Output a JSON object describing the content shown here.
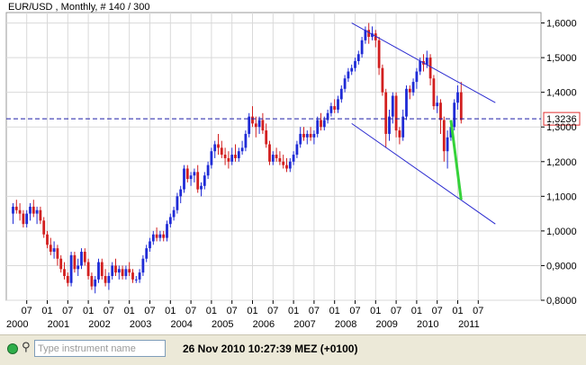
{
  "chart_data": {
    "type": "candlestick",
    "title": "EUR/USD , Monthly, # 140 / 300",
    "current_price_label": "1,3236",
    "current_price": 1.3236,
    "ylim": [
      0.8,
      1.63
    ],
    "y_ticks": [
      "0,8000",
      "0,9000",
      "1,0000",
      "1,1000",
      "1,2000",
      "1,3000",
      "1,4000",
      "1,5000",
      "1,6000"
    ],
    "y_tick_values": [
      0.8,
      0.9,
      1.0,
      1.1,
      1.2,
      1.3,
      1.4,
      1.5,
      1.6
    ],
    "month_ticks": [
      "07",
      "01",
      "07",
      "01",
      "07",
      "01",
      "07",
      "01",
      "07",
      "01",
      "07",
      "01",
      "07",
      "01",
      "07",
      "01",
      "07",
      "01",
      "07",
      "01",
      "07",
      "01",
      "07"
    ],
    "year_labels": [
      "2000",
      "2001",
      "2002",
      "2003",
      "2004",
      "2005",
      "2006",
      "2007",
      "2008",
      "2009",
      "2010",
      "2011"
    ],
    "start_date": "2000-03",
    "colors": {
      "up": "#1f2bd6",
      "down": "#d21f1f",
      "grid": "#d9d9d9",
      "projection": "#35d23a",
      "channel": "#2a2ad0",
      "level": "#1c1ca8",
      "price_box": "#e23030"
    },
    "candles": [
      [
        1.05,
        1.08,
        1.02,
        1.07
      ],
      [
        1.07,
        1.09,
        1.05,
        1.06
      ],
      [
        1.06,
        1.08,
        1.03,
        1.05
      ],
      [
        1.05,
        1.06,
        1.01,
        1.02
      ],
      [
        1.02,
        1.06,
        1.01,
        1.05
      ],
      [
        1.05,
        1.08,
        1.03,
        1.07
      ],
      [
        1.07,
        1.09,
        1.04,
        1.05
      ],
      [
        1.05,
        1.07,
        1.02,
        1.06
      ],
      [
        1.06,
        1.07,
        1.02,
        1.03
      ],
      [
        1.03,
        1.04,
        0.98,
        0.99
      ],
      [
        0.99,
        1.0,
        0.95,
        0.96
      ],
      [
        0.96,
        0.98,
        0.93,
        0.94
      ],
      [
        0.94,
        0.97,
        0.92,
        0.95
      ],
      [
        0.95,
        0.96,
        0.9,
        0.92
      ],
      [
        0.92,
        0.93,
        0.88,
        0.89
      ],
      [
        0.89,
        0.91,
        0.86,
        0.87
      ],
      [
        0.87,
        0.88,
        0.84,
        0.85
      ],
      [
        0.85,
        0.94,
        0.84,
        0.93
      ],
      [
        0.93,
        0.94,
        0.88,
        0.89
      ],
      [
        0.89,
        0.92,
        0.87,
        0.9
      ],
      [
        0.9,
        0.95,
        0.89,
        0.94
      ],
      [
        0.94,
        0.95,
        0.9,
        0.91
      ],
      [
        0.91,
        0.92,
        0.86,
        0.87
      ],
      [
        0.87,
        0.88,
        0.83,
        0.84
      ],
      [
        0.84,
        0.87,
        0.82,
        0.86
      ],
      [
        0.86,
        0.92,
        0.85,
        0.91
      ],
      [
        0.91,
        0.92,
        0.86,
        0.87
      ],
      [
        0.87,
        0.89,
        0.84,
        0.85
      ],
      [
        0.85,
        0.88,
        0.83,
        0.87
      ],
      [
        0.87,
        0.91,
        0.86,
        0.9
      ],
      [
        0.9,
        0.92,
        0.87,
        0.88
      ],
      [
        0.88,
        0.9,
        0.86,
        0.89
      ],
      [
        0.89,
        0.9,
        0.86,
        0.87
      ],
      [
        0.87,
        0.9,
        0.86,
        0.89
      ],
      [
        0.89,
        0.91,
        0.87,
        0.88
      ],
      [
        0.88,
        0.89,
        0.85,
        0.86
      ],
      [
        0.86,
        0.87,
        0.85,
        0.86
      ],
      [
        0.86,
        0.89,
        0.85,
        0.88
      ],
      [
        0.88,
        0.93,
        0.87,
        0.92
      ],
      [
        0.92,
        0.96,
        0.91,
        0.95
      ],
      [
        0.95,
        0.98,
        0.94,
        0.97
      ],
      [
        0.97,
        1.0,
        0.96,
        0.99
      ],
      [
        0.99,
        1.01,
        0.97,
        0.98
      ],
      [
        0.98,
        1.0,
        0.97,
        0.99
      ],
      [
        0.99,
        1.0,
        0.97,
        0.98
      ],
      [
        0.98,
        1.03,
        0.97,
        1.02
      ],
      [
        1.02,
        1.05,
        1.01,
        1.04
      ],
      [
        1.04,
        1.07,
        1.03,
        1.06
      ],
      [
        1.06,
        1.11,
        1.05,
        1.1
      ],
      [
        1.1,
        1.13,
        1.08,
        1.12
      ],
      [
        1.12,
        1.19,
        1.11,
        1.18
      ],
      [
        1.18,
        1.19,
        1.14,
        1.15
      ],
      [
        1.15,
        1.17,
        1.13,
        1.16
      ],
      [
        1.16,
        1.18,
        1.14,
        1.17
      ],
      [
        1.17,
        1.19,
        1.11,
        1.12
      ],
      [
        1.12,
        1.14,
        1.1,
        1.13
      ],
      [
        1.13,
        1.17,
        1.12,
        1.16
      ],
      [
        1.16,
        1.2,
        1.15,
        1.19
      ],
      [
        1.19,
        1.24,
        1.18,
        1.23
      ],
      [
        1.23,
        1.26,
        1.21,
        1.25
      ],
      [
        1.25,
        1.28,
        1.22,
        1.24
      ],
      [
        1.24,
        1.26,
        1.21,
        1.22
      ],
      [
        1.22,
        1.24,
        1.19,
        1.21
      ],
      [
        1.21,
        1.23,
        1.18,
        1.2
      ],
      [
        1.2,
        1.24,
        1.19,
        1.22
      ],
      [
        1.22,
        1.25,
        1.2,
        1.21
      ],
      [
        1.21,
        1.24,
        1.2,
        1.23
      ],
      [
        1.23,
        1.26,
        1.22,
        1.24
      ],
      [
        1.24,
        1.29,
        1.23,
        1.28
      ],
      [
        1.28,
        1.34,
        1.27,
        1.33
      ],
      [
        1.33,
        1.36,
        1.3,
        1.31
      ],
      [
        1.31,
        1.33,
        1.27,
        1.3
      ],
      [
        1.3,
        1.33,
        1.28,
        1.32
      ],
      [
        1.32,
        1.34,
        1.28,
        1.29
      ],
      [
        1.29,
        1.31,
        1.24,
        1.25
      ],
      [
        1.25,
        1.26,
        1.19,
        1.2
      ],
      [
        1.2,
        1.23,
        1.19,
        1.22
      ],
      [
        1.22,
        1.24,
        1.2,
        1.21
      ],
      [
        1.21,
        1.23,
        1.19,
        1.2
      ],
      [
        1.2,
        1.22,
        1.18,
        1.19
      ],
      [
        1.19,
        1.21,
        1.17,
        1.18
      ],
      [
        1.18,
        1.21,
        1.17,
        1.2
      ],
      [
        1.2,
        1.23,
        1.19,
        1.22
      ],
      [
        1.22,
        1.26,
        1.21,
        1.25
      ],
      [
        1.25,
        1.3,
        1.24,
        1.28
      ],
      [
        1.28,
        1.3,
        1.26,
        1.27
      ],
      [
        1.27,
        1.29,
        1.25,
        1.28
      ],
      [
        1.28,
        1.3,
        1.26,
        1.27
      ],
      [
        1.27,
        1.29,
        1.25,
        1.28
      ],
      [
        1.28,
        1.33,
        1.27,
        1.32
      ],
      [
        1.32,
        1.34,
        1.29,
        1.3
      ],
      [
        1.3,
        1.33,
        1.29,
        1.32
      ],
      [
        1.32,
        1.35,
        1.31,
        1.34
      ],
      [
        1.34,
        1.37,
        1.33,
        1.36
      ],
      [
        1.36,
        1.38,
        1.34,
        1.35
      ],
      [
        1.35,
        1.39,
        1.34,
        1.38
      ],
      [
        1.38,
        1.42,
        1.37,
        1.41
      ],
      [
        1.41,
        1.45,
        1.4,
        1.44
      ],
      [
        1.44,
        1.47,
        1.43,
        1.46
      ],
      [
        1.46,
        1.48,
        1.45,
        1.47
      ],
      [
        1.47,
        1.5,
        1.46,
        1.49
      ],
      [
        1.49,
        1.52,
        1.48,
        1.51
      ],
      [
        1.51,
        1.56,
        1.5,
        1.55
      ],
      [
        1.55,
        1.59,
        1.54,
        1.58
      ],
      [
        1.58,
        1.6,
        1.54,
        1.56
      ],
      [
        1.56,
        1.59,
        1.55,
        1.57
      ],
      [
        1.57,
        1.58,
        1.53,
        1.55
      ],
      [
        1.55,
        1.56,
        1.45,
        1.47
      ],
      [
        1.47,
        1.48,
        1.39,
        1.4
      ],
      [
        1.4,
        1.41,
        1.24,
        1.28
      ],
      [
        1.28,
        1.35,
        1.26,
        1.33
      ],
      [
        1.33,
        1.4,
        1.31,
        1.39
      ],
      [
        1.39,
        1.4,
        1.27,
        1.29
      ],
      [
        1.29,
        1.3,
        1.25,
        1.27
      ],
      [
        1.27,
        1.35,
        1.26,
        1.33
      ],
      [
        1.33,
        1.42,
        1.32,
        1.41
      ],
      [
        1.41,
        1.42,
        1.38,
        1.4
      ],
      [
        1.4,
        1.44,
        1.39,
        1.43
      ],
      [
        1.43,
        1.47,
        1.41,
        1.46
      ],
      [
        1.46,
        1.5,
        1.45,
        1.49
      ],
      [
        1.49,
        1.51,
        1.46,
        1.48
      ],
      [
        1.48,
        1.52,
        1.47,
        1.5
      ],
      [
        1.5,
        1.51,
        1.42,
        1.44
      ],
      [
        1.44,
        1.45,
        1.35,
        1.36
      ],
      [
        1.36,
        1.39,
        1.34,
        1.37
      ],
      [
        1.37,
        1.38,
        1.28,
        1.32
      ],
      [
        1.32,
        1.33,
        1.2,
        1.23
      ],
      [
        1.23,
        1.29,
        1.18,
        1.27
      ],
      [
        1.27,
        1.31,
        1.26,
        1.3
      ],
      [
        1.3,
        1.38,
        1.29,
        1.37
      ],
      [
        1.37,
        1.42,
        1.35,
        1.4
      ],
      [
        1.4,
        1.43,
        1.31,
        1.32
      ]
    ],
    "channel_upper": [
      [
        "2008-06",
        1.6
      ],
      [
        "2011-12",
        1.37
      ]
    ],
    "channel_lower": [
      [
        "2008-06",
        1.31
      ],
      [
        "2011-12",
        1.02
      ]
    ],
    "projection": [
      [
        "2010-11",
        1.32
      ],
      [
        "2011-02",
        1.09
      ]
    ]
  },
  "statusbar": {
    "search_placeholder": "Type instrument name",
    "datetime": "26 Nov 2010 10:27:39  MEZ (+0100)"
  }
}
